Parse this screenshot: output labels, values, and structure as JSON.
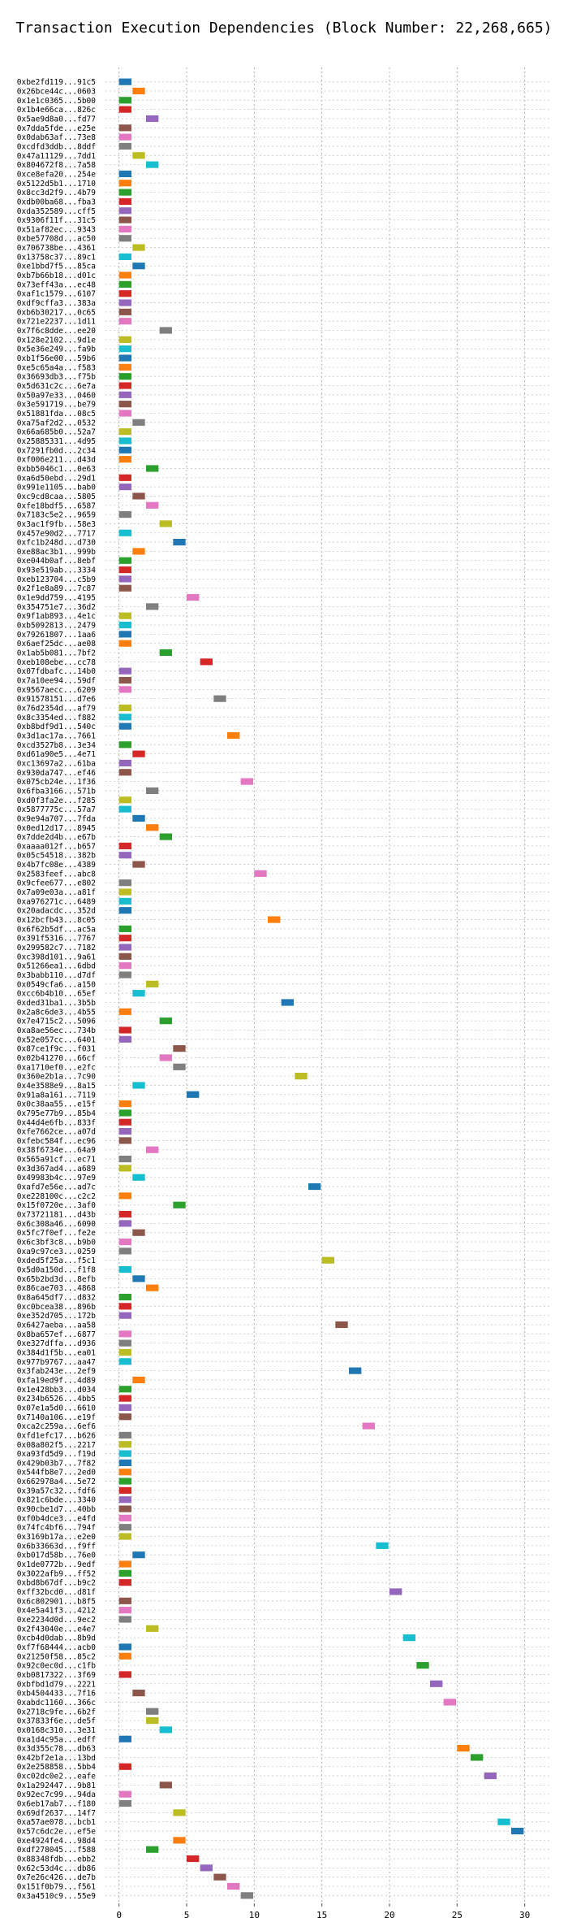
{
  "chart_data": {
    "type": "bar",
    "title": "Transaction Execution Dependencies (Block Number: 22,268,665)",
    "xlabel": "",
    "ylabel": "",
    "xlim": [
      -1,
      32
    ],
    "x_ticks": [
      0,
      5,
      10,
      15,
      20,
      25,
      30
    ],
    "grid": "dotted vertical",
    "palette": [
      "#1f77b4",
      "#ff7f0e",
      "#2ca02c",
      "#d62728",
      "#9467bd",
      "#8c564b",
      "#e377c2",
      "#7f7f7f",
      "#bcbd22",
      "#17becf"
    ],
    "bar_duration": 1,
    "transactions": [
      {
        "label": "0xbe2fd119...91c5",
        "start": 0
      },
      {
        "label": "0x26bce44c...0603",
        "start": 1
      },
      {
        "label": "0x1e1c0365...5b00",
        "start": 0
      },
      {
        "label": "0x1b4e66ca...826c",
        "start": 0
      },
      {
        "label": "0x5ae9d8a0...fd77",
        "start": 2
      },
      {
        "label": "0x7dda5fde...e25e",
        "start": 0
      },
      {
        "label": "0x0dab63af...73e8",
        "start": 0
      },
      {
        "label": "0xcdfd3ddb...8ddf",
        "start": 0
      },
      {
        "label": "0x47a11129...7dd1",
        "start": 1
      },
      {
        "label": "0x804672f8...7a58",
        "start": 2
      },
      {
        "label": "0xce8efa20...254e",
        "start": 0
      },
      {
        "label": "0x5122d5b1...1710",
        "start": 0
      },
      {
        "label": "0x8cc3d2f9...4b79",
        "start": 0
      },
      {
        "label": "0xdb00ba68...fba3",
        "start": 0
      },
      {
        "label": "0xda352589...cff5",
        "start": 0
      },
      {
        "label": "0x9306f11f...31c5",
        "start": 0
      },
      {
        "label": "0x51af82ec...9343",
        "start": 0
      },
      {
        "label": "0xbe57708d...ac50",
        "start": 0
      },
      {
        "label": "0x706738be...4361",
        "start": 1
      },
      {
        "label": "0x13758c37...89c1",
        "start": 0
      },
      {
        "label": "0xe1bbd7f5...85ca",
        "start": 1
      },
      {
        "label": "0xb7b66b18...d01c",
        "start": 0
      },
      {
        "label": "0x73eff43a...ec48",
        "start": 0
      },
      {
        "label": "0xaf1c1579...6107",
        "start": 0
      },
      {
        "label": "0xdf9cffa3...383a",
        "start": 0
      },
      {
        "label": "0xb6b30217...0c65",
        "start": 0
      },
      {
        "label": "0x721e2237...1d11",
        "start": 0
      },
      {
        "label": "0x7f6c8dde...ee20",
        "start": 3
      },
      {
        "label": "0x128e2102...9d1e",
        "start": 0
      },
      {
        "label": "0x5e36e249...fa9b",
        "start": 0
      },
      {
        "label": "0xb1f56e00...59b6",
        "start": 0
      },
      {
        "label": "0xe5c65a4a...f583",
        "start": 0
      },
      {
        "label": "0x36693db3...f75b",
        "start": 0
      },
      {
        "label": "0x5d631c2c...6e7a",
        "start": 0
      },
      {
        "label": "0x50a97e33...0460",
        "start": 0
      },
      {
        "label": "0x3e591719...be79",
        "start": 0
      },
      {
        "label": "0x51881fda...08c5",
        "start": 0
      },
      {
        "label": "0xa75af2d2...0532",
        "start": 1
      },
      {
        "label": "0x66a685b0...52a7",
        "start": 0
      },
      {
        "label": "0x25885331...4d95",
        "start": 0
      },
      {
        "label": "0x7291fb0d...2c34",
        "start": 0
      },
      {
        "label": "0xf006e211...d43d",
        "start": 0
      },
      {
        "label": "0xbb5046c1...0e63",
        "start": 2
      },
      {
        "label": "0xa6d50ebd...29d1",
        "start": 0
      },
      {
        "label": "0x991e1105...bab0",
        "start": 0
      },
      {
        "label": "0xc9cd8caa...5805",
        "start": 1
      },
      {
        "label": "0xfe18bdf5...6587",
        "start": 2
      },
      {
        "label": "0x7183c5e2...9659",
        "start": 0
      },
      {
        "label": "0x3ac1f9fb...58e3",
        "start": 3
      },
      {
        "label": "0x457e90d2...7717",
        "start": 0
      },
      {
        "label": "0xfc1b248d...d730",
        "start": 4
      },
      {
        "label": "0xe88ac3b1...999b",
        "start": 1
      },
      {
        "label": "0xe044b0af...8ebf",
        "start": 0
      },
      {
        "label": "0x93e519ab...3334",
        "start": 0
      },
      {
        "label": "0xeb123704...c5b9",
        "start": 0
      },
      {
        "label": "0x2f1e8a89...7c87",
        "start": 0
      },
      {
        "label": "0x1e9dd759...4195",
        "start": 5
      },
      {
        "label": "0x354751e7...36d2",
        "start": 2
      },
      {
        "label": "0x9f1ab893...4e1c",
        "start": 0
      },
      {
        "label": "0xb5092813...2479",
        "start": 0
      },
      {
        "label": "0x79261807...1aa6",
        "start": 0
      },
      {
        "label": "0x6aef25dc...ae08",
        "start": 0
      },
      {
        "label": "0x1ab5b081...7bf2",
        "start": 3
      },
      {
        "label": "0xeb108ebe...cc78",
        "start": 6
      },
      {
        "label": "0x07fdbafc...14b0",
        "start": 0
      },
      {
        "label": "0x7a10ee94...59df",
        "start": 0
      },
      {
        "label": "0x9567aecc...6209",
        "start": 0
      },
      {
        "label": "0x91578151...d7e6",
        "start": 7
      },
      {
        "label": "0x76d2354d...af79",
        "start": 0
      },
      {
        "label": "0x8c3354ed...f882",
        "start": 0
      },
      {
        "label": "0xb8bdf9d1...540c",
        "start": 0
      },
      {
        "label": "0x3d1ac17a...7661",
        "start": 8
      },
      {
        "label": "0xcd3527b8...3e34",
        "start": 0
      },
      {
        "label": "0xd61a90e5...4e71",
        "start": 1
      },
      {
        "label": "0xc13697a2...61ba",
        "start": 0
      },
      {
        "label": "0x930da747...ef46",
        "start": 0
      },
      {
        "label": "0x075cb24e...1f36",
        "start": 9
      },
      {
        "label": "0x6fba3166...571b",
        "start": 2
      },
      {
        "label": "0xd0f3fa2e...f285",
        "start": 0
      },
      {
        "label": "0x5877775c...57a7",
        "start": 0
      },
      {
        "label": "0x9e94a707...7fda",
        "start": 1
      },
      {
        "label": "0x0ed12d17...8945",
        "start": 2
      },
      {
        "label": "0x7dde2d4b...e67b",
        "start": 3
      },
      {
        "label": "0xaaaa012f...b657",
        "start": 0
      },
      {
        "label": "0x05c54518...382b",
        "start": 0
      },
      {
        "label": "0x4b7fc08e...4389",
        "start": 1
      },
      {
        "label": "0x2583feef...abc8",
        "start": 10
      },
      {
        "label": "0x9cfee677...e802",
        "start": 0
      },
      {
        "label": "0x7a09e03a...a81f",
        "start": 0
      },
      {
        "label": "0xa976271c...6489",
        "start": 0
      },
      {
        "label": "0x20adacdc...352d",
        "start": 0
      },
      {
        "label": "0x12bcfb43...8c05",
        "start": 11
      },
      {
        "label": "0x6f62b5df...ac5a",
        "start": 0
      },
      {
        "label": "0x391f5316...7767",
        "start": 0
      },
      {
        "label": "0x299582c7...7182",
        "start": 0
      },
      {
        "label": "0xc398d101...9a61",
        "start": 0
      },
      {
        "label": "0x51266ea1...6dbd",
        "start": 0
      },
      {
        "label": "0x3babb110...d7df",
        "start": 0
      },
      {
        "label": "0x0549cfa6...a150",
        "start": 2
      },
      {
        "label": "0xcc6b4b10...65ef",
        "start": 1
      },
      {
        "label": "0xded31ba1...3b5b",
        "start": 12
      },
      {
        "label": "0x2a8c6de3...4b55",
        "start": 0
      },
      {
        "label": "0x7e4715c2...5096",
        "start": 3
      },
      {
        "label": "0xa8ae56ec...734b",
        "start": 0
      },
      {
        "label": "0x52e057cc...6401",
        "start": 0
      },
      {
        "label": "0x87ce1f9c...f031",
        "start": 4
      },
      {
        "label": "0x02b41270...66cf",
        "start": 3
      },
      {
        "label": "0xa1710ef0...e2fc",
        "start": 4
      },
      {
        "label": "0x360e2b1a...7c90",
        "start": 13
      },
      {
        "label": "0x4e3588e9...8a15",
        "start": 1
      },
      {
        "label": "0x91a8a161...7119",
        "start": 5
      },
      {
        "label": "0x0c38aa55...e15f",
        "start": 0
      },
      {
        "label": "0x795e77b9...85b4",
        "start": 0
      },
      {
        "label": "0x44d4e6fb...833f",
        "start": 0
      },
      {
        "label": "0xfe7662ce...a07d",
        "start": 0
      },
      {
        "label": "0xfebc584f...ec96",
        "start": 0
      },
      {
        "label": "0x38f6734e...64a9",
        "start": 2
      },
      {
        "label": "0x565a91cf...ec71",
        "start": 0
      },
      {
        "label": "0x3d367ad4...a689",
        "start": 0
      },
      {
        "label": "0x49983b4c...97e9",
        "start": 1
      },
      {
        "label": "0xafd7e56e...ad7c",
        "start": 14
      },
      {
        "label": "0xe228100c...c2c2",
        "start": 0
      },
      {
        "label": "0x15f0720e...3af0",
        "start": 4
      },
      {
        "label": "0x73721181...d43b",
        "start": 0
      },
      {
        "label": "0x6c308a46...6090",
        "start": 0
      },
      {
        "label": "0x5fc7f0ef...fe2e",
        "start": 1
      },
      {
        "label": "0x6c3bf3c8...b9b0",
        "start": 0
      },
      {
        "label": "0xa9c97ce3...0259",
        "start": 0
      },
      {
        "label": "0xded5f25a...f5c1",
        "start": 15
      },
      {
        "label": "0x5d0a150d...f1f8",
        "start": 0
      },
      {
        "label": "0x65b2bd3d...8efb",
        "start": 1
      },
      {
        "label": "0x86cae703...4868",
        "start": 2
      },
      {
        "label": "0x8a645df7...d832",
        "start": 0
      },
      {
        "label": "0xc0bcea38...896b",
        "start": 0
      },
      {
        "label": "0xe352d705...172b",
        "start": 0
      },
      {
        "label": "0x6427aeba...aa58",
        "start": 16
      },
      {
        "label": "0x8ba657ef...6877",
        "start": 0
      },
      {
        "label": "0xe327dffa...d936",
        "start": 0
      },
      {
        "label": "0x384d1f5b...ea01",
        "start": 0
      },
      {
        "label": "0x977b9767...aa47",
        "start": 0
      },
      {
        "label": "0x3fab243e...2ef9",
        "start": 17
      },
      {
        "label": "0xfa19ed9f...4d89",
        "start": 1
      },
      {
        "label": "0x1e428bb3...d034",
        "start": 0
      },
      {
        "label": "0x234b6526...4bb5",
        "start": 0
      },
      {
        "label": "0x07e1a5d0...6610",
        "start": 0
      },
      {
        "label": "0x7140a106...e19f",
        "start": 0
      },
      {
        "label": "0xca2c259a...6ef6",
        "start": 18
      },
      {
        "label": "0xfd1efc17...b626",
        "start": 0
      },
      {
        "label": "0x08a802f5...2217",
        "start": 0
      },
      {
        "label": "0xa93fd5d9...f19d",
        "start": 0
      },
      {
        "label": "0x429b03b7...7f82",
        "start": 0
      },
      {
        "label": "0x544fb8e7...2ed0",
        "start": 0
      },
      {
        "label": "0x662978a4...5e72",
        "start": 0
      },
      {
        "label": "0x39a57c32...fdf6",
        "start": 0
      },
      {
        "label": "0x821c6bde...3340",
        "start": 0
      },
      {
        "label": "0x90cbe1d7...40bb",
        "start": 0
      },
      {
        "label": "0xf0b4dce3...e4fd",
        "start": 0
      },
      {
        "label": "0x74fc4bf6...794f",
        "start": 0
      },
      {
        "label": "0x3169b17a...e2e0",
        "start": 0
      },
      {
        "label": "0x6b33663d...f9ff",
        "start": 19
      },
      {
        "label": "0xb017d58b...76e0",
        "start": 1
      },
      {
        "label": "0x1de0772b...9edf",
        "start": 0
      },
      {
        "label": "0x3022afb9...ff52",
        "start": 0
      },
      {
        "label": "0xbd8b67df...b9c2",
        "start": 0
      },
      {
        "label": "0xff32bcd0...d81f",
        "start": 20
      },
      {
        "label": "0x6c802901...b8f5",
        "start": 0
      },
      {
        "label": "0x4e5a41f3...4212",
        "start": 0
      },
      {
        "label": "0xe2234d0d...9ec2",
        "start": 0
      },
      {
        "label": "0x2f43040e...e4e7",
        "start": 2
      },
      {
        "label": "0xcb4d0dab...8b9d",
        "start": 21
      },
      {
        "label": "0xf7f68444...acb0",
        "start": 0
      },
      {
        "label": "0x21250f58...85c2",
        "start": 0
      },
      {
        "label": "0x92c0ec0d...c1fb",
        "start": 22
      },
      {
        "label": "0xb0817322...3f69",
        "start": 0
      },
      {
        "label": "0xbfbd1d79...2221",
        "start": 23
      },
      {
        "label": "0xb4504433...7f16",
        "start": 1
      },
      {
        "label": "0xabdc1160...366c",
        "start": 24
      },
      {
        "label": "0x2718c9fe...6b2f",
        "start": 2
      },
      {
        "label": "0x37833f6e...de5f",
        "start": 2
      },
      {
        "label": "0x0168c310...3e31",
        "start": 3
      },
      {
        "label": "0xa1d4c95a...edff",
        "start": 0
      },
      {
        "label": "0x3d355c78...db63",
        "start": 25
      },
      {
        "label": "0x42bf2e1a...13bd",
        "start": 26
      },
      {
        "label": "0x2e258858...5bb4",
        "start": 0
      },
      {
        "label": "0xc02dc0e2...eafe",
        "start": 27
      },
      {
        "label": "0x1a292447...9b81",
        "start": 3
      },
      {
        "label": "0x92ec7c99...94da",
        "start": 0
      },
      {
        "label": "0x6eb17ab7...f180",
        "start": 0
      },
      {
        "label": "0x69df2637...14f7",
        "start": 4
      },
      {
        "label": "0xa57ae078...bcb1",
        "start": 28
      },
      {
        "label": "0x57c6dc2e...ef5e",
        "start": 29
      },
      {
        "label": "0xe4924fe4...98d4",
        "start": 4
      },
      {
        "label": "0xdf278045...f588",
        "start": 2
      },
      {
        "label": "0x88348fdb...ebb2",
        "start": 5
      },
      {
        "label": "0x62c53d4c...db86",
        "start": 6
      },
      {
        "label": "0x7e26c426...de7b",
        "start": 7
      },
      {
        "label": "0x151f0b79...f561",
        "start": 8
      },
      {
        "label": "0x3a4510c9...55e9",
        "start": 9
      }
    ]
  }
}
